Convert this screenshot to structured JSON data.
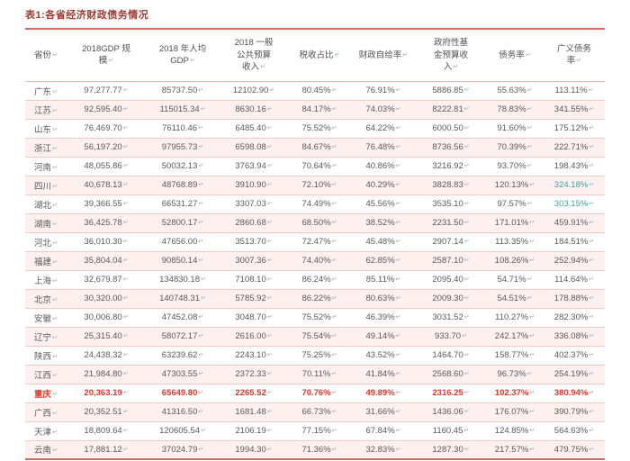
{
  "title": "表1:各省经济财政债务情况",
  "eol_mark": "↵",
  "colors": {
    "title_text": "#a03b32",
    "highlight_row_text": "#e2372b",
    "teal_value_text": "#3aa59f",
    "row_stripe_bg": "#fdf0ee",
    "table_border_strong": "#d2685f",
    "table_border_light": "#f3cac3",
    "body_text": "#595959",
    "paragraph_mark": "#97b3cf"
  },
  "table": {
    "columns": [
      {
        "id": "province",
        "lines": [
          "省份"
        ]
      },
      {
        "id": "gdp_2018",
        "lines": [
          "2018GDP 规",
          "模"
        ]
      },
      {
        "id": "gdp_per_capita_2018",
        "lines": [
          "2018 年人均",
          "GDP"
        ]
      },
      {
        "id": "public_budget_revenue_2018",
        "lines": [
          "2018 一般",
          "公共预算",
          "收入"
        ]
      },
      {
        "id": "tax_share",
        "lines": [
          "税收占比"
        ]
      },
      {
        "id": "fiscal_self_sufficiency",
        "lines": [
          "财政自给率"
        ]
      },
      {
        "id": "gov_fund_budget_revenue",
        "lines": [
          "政府性基",
          "金预算收",
          "入"
        ]
      },
      {
        "id": "debt_ratio",
        "lines": [
          "债务率"
        ]
      },
      {
        "id": "broad_debt_ratio",
        "lines": [
          "广义债务",
          "率"
        ]
      }
    ],
    "rows": [
      {
        "province": "广东",
        "values": [
          "97,277.77",
          "85737.50",
          "12102.90",
          "80.45%",
          "76.91%",
          "5886.85",
          "55.63%",
          "113.11%"
        ]
      },
      {
        "province": "江苏",
        "values": [
          "92,595.40",
          "115015.34",
          "8630.16",
          "84.17%",
          "74.03%",
          "8222.81",
          "78.83%",
          "341.55%"
        ]
      },
      {
        "province": "山东",
        "values": [
          "76,469.70",
          "76110.46",
          "6485.40",
          "75.52%",
          "64.22%",
          "6000.50",
          "91.60%",
          "175.12%"
        ]
      },
      {
        "province": "浙江",
        "values": [
          "56,197.20",
          "97955.73",
          "6598.08",
          "84.67%",
          "76.48%",
          "8736.56",
          "70.39%",
          "222.71%"
        ]
      },
      {
        "province": "河南",
        "values": [
          "48,055.86",
          "50032.13",
          "3763.94",
          "70.64%",
          "40.86%",
          "3216.92",
          "93.70%",
          "198.43%"
        ]
      },
      {
        "province": "四川",
        "teal": [
          7
        ],
        "values": [
          "40,678.13",
          "48768.89",
          "3910.90",
          "72.10%",
          "40.29%",
          "3828.83",
          "120.13%",
          "324.18%"
        ]
      },
      {
        "province": "湖北",
        "teal": [
          7
        ],
        "values": [
          "39,366.55",
          "66531.27",
          "3307.03",
          "74.49%",
          "45.56%",
          "3535.10",
          "97.57%",
          "303.15%"
        ]
      },
      {
        "province": "湖南",
        "values": [
          "36,425.78",
          "52800.17",
          "2860.68",
          "68.50%",
          "38.52%",
          "2231.50",
          "171.01%",
          "459.91%"
        ]
      },
      {
        "province": "河北",
        "values": [
          "36,010.30",
          "47656.00",
          "3513.70",
          "72.47%",
          "45.48%",
          "2907.14",
          "113.35%",
          "184.51%"
        ]
      },
      {
        "province": "福建",
        "values": [
          "35,804.04",
          "90850.14",
          "3007.36",
          "74.40%",
          "62.85%",
          "2587.10",
          "108.26%",
          "252.94%"
        ]
      },
      {
        "province": "上海",
        "values": [
          "32,679.87",
          "134830.18",
          "7108.10",
          "86.24%",
          "85.11%",
          "2095.40",
          "54.71%",
          "114.64%"
        ]
      },
      {
        "province": "北京",
        "values": [
          "30,320.00",
          "140748.31",
          "5785.92",
          "86.22%",
          "80.63%",
          "2009.30",
          "54.51%",
          "178.88%"
        ]
      },
      {
        "province": "安徽",
        "values": [
          "30,006.80",
          "47452.08",
          "3048.70",
          "75.52%",
          "46.39%",
          "3031.52",
          "110.27%",
          "282.30%"
        ]
      },
      {
        "province": "辽宁",
        "values": [
          "25,315.40",
          "58072.17",
          "2616.00",
          "75.54%",
          "49.14%",
          "933.70",
          "242.17%",
          "336.08%"
        ]
      },
      {
        "province": "陕西",
        "values": [
          "24,438.32",
          "63239.62",
          "2243.10",
          "75.25%",
          "43.52%",
          "1464.70",
          "158.77%",
          "402.37%"
        ]
      },
      {
        "province": "江西",
        "values": [
          "21,984.80",
          "47303.55",
          "2372.33",
          "70.11%",
          "41.84%",
          "2568.60",
          "96.73%",
          "254.19%"
        ]
      },
      {
        "province": "重庆",
        "highlight": true,
        "values": [
          "20,363.19",
          "65649.80",
          "2265.52",
          "70.76%",
          "49.89%",
          "2316.25",
          "102.37%",
          "380.94%"
        ]
      },
      {
        "province": "广西",
        "values": [
          "20,352.51",
          "41316.50",
          "1681.48",
          "66.73%",
          "31.66%",
          "1436.06",
          "176.07%",
          "390.79%"
        ]
      },
      {
        "province": "天津",
        "values": [
          "18,809.64",
          "120605.54",
          "2106.19",
          "77.15%",
          "67.84%",
          "1160.45",
          "124.85%",
          "564.63%"
        ]
      },
      {
        "province": "云南",
        "values": [
          "17,881.12",
          "37024.79",
          "1994.30",
          "71.36%",
          "32.83%",
          "1287.30",
          "217.57%",
          "479.75%"
        ]
      }
    ]
  }
}
